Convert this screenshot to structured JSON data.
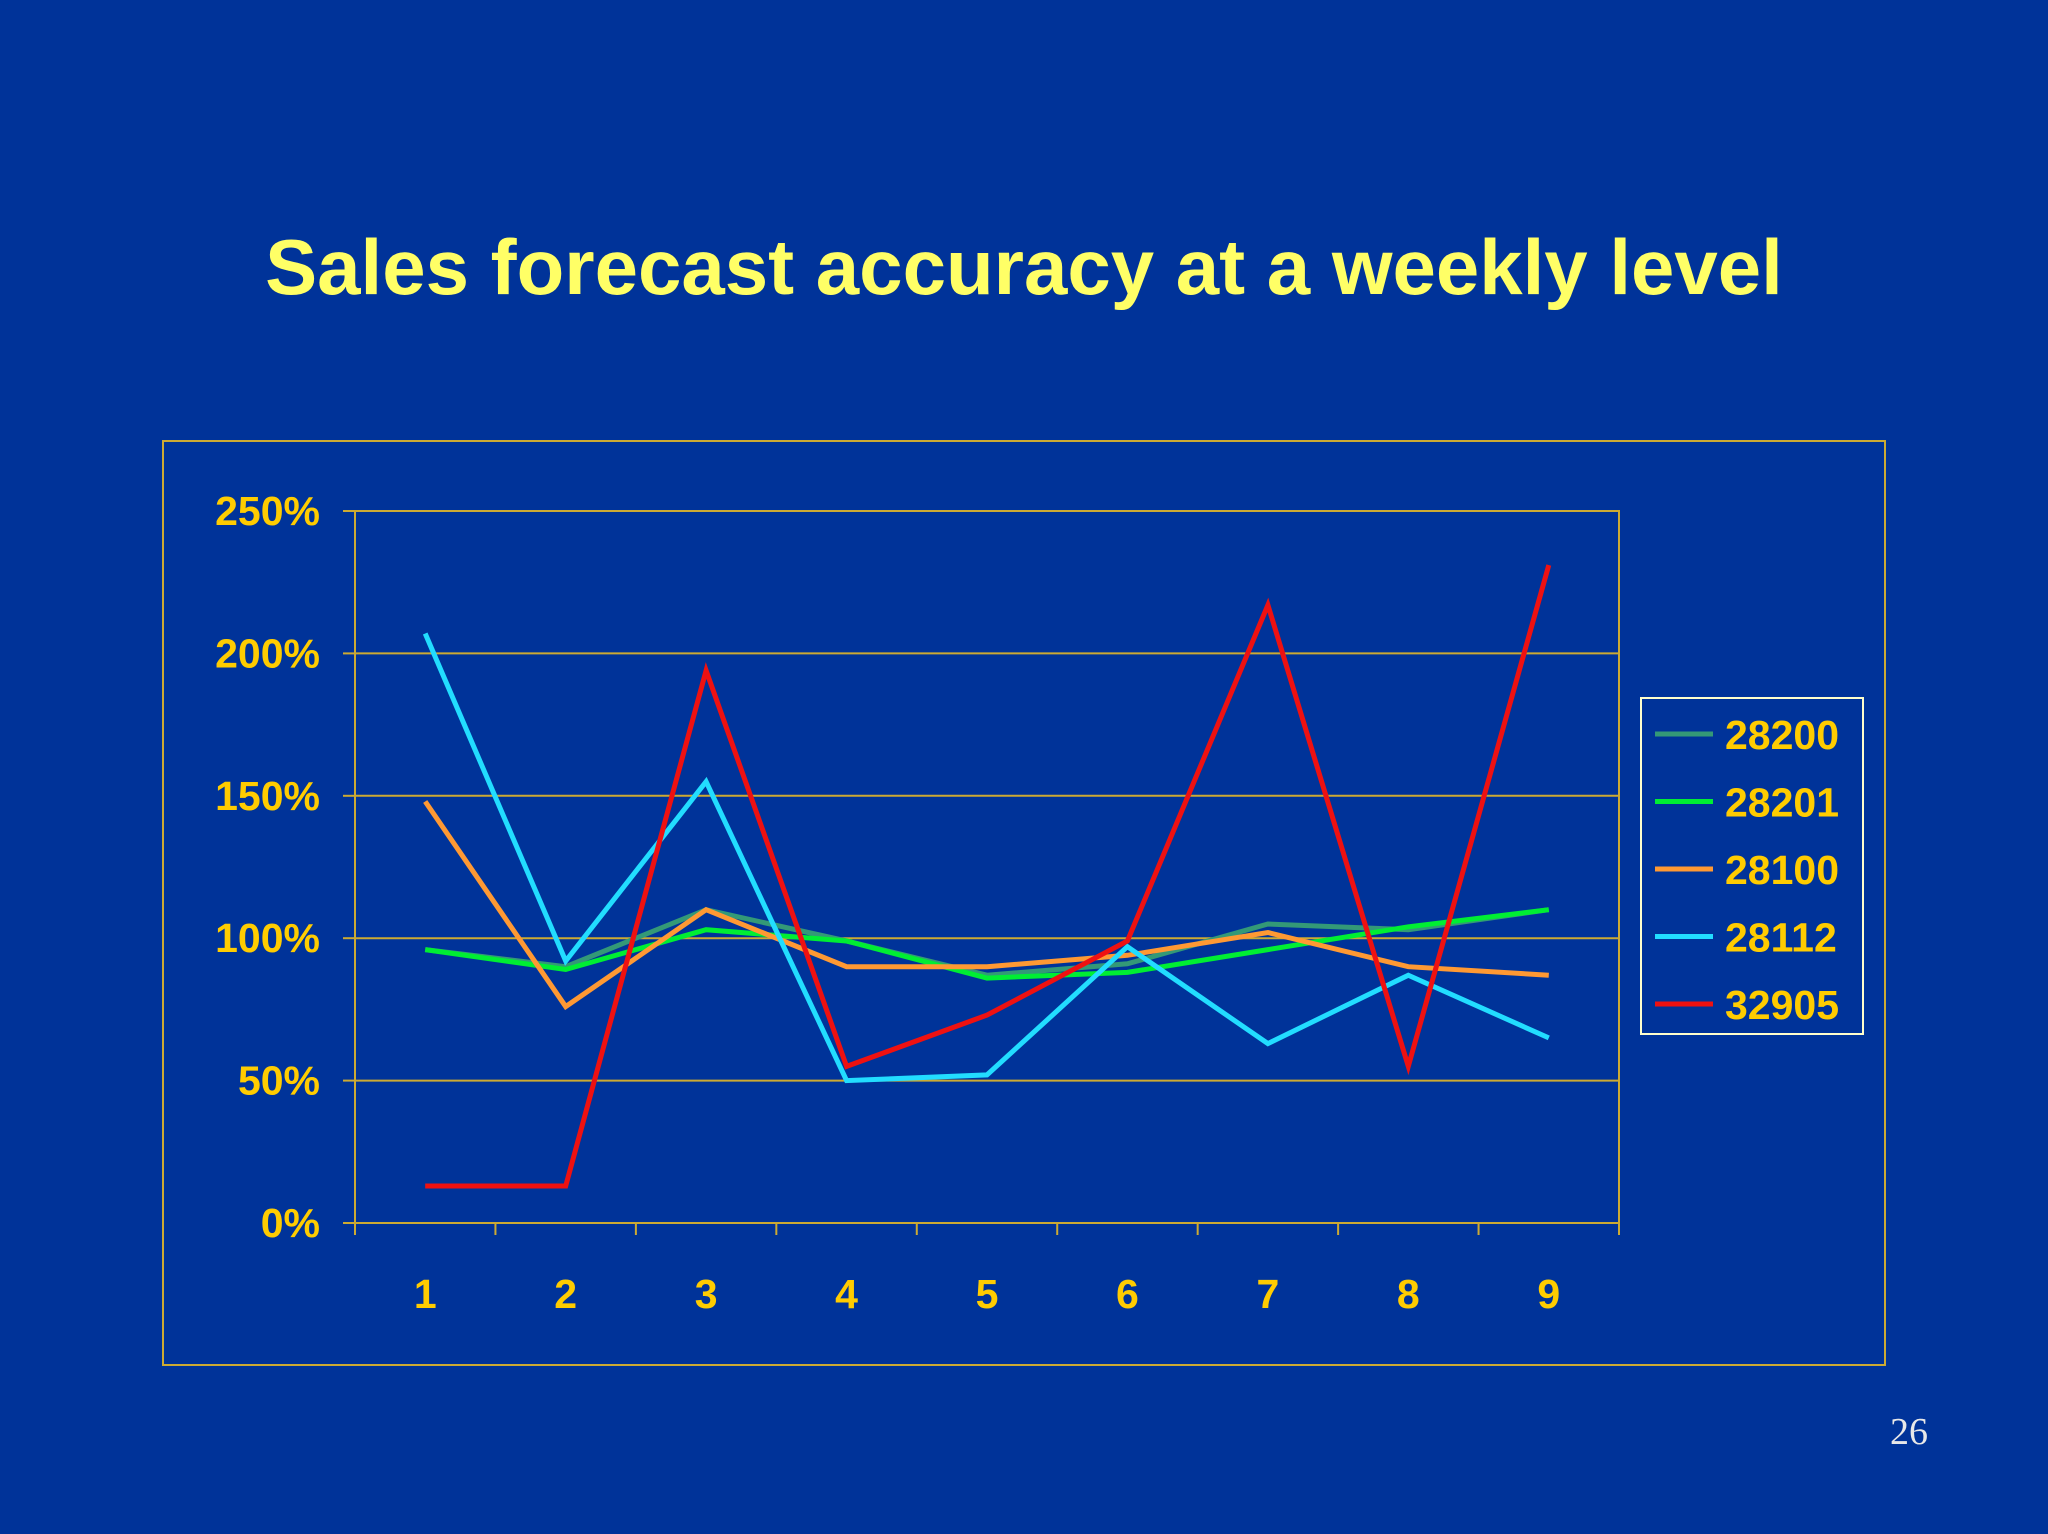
{
  "slide": {
    "title": "Sales forecast accuracy at a weekly level",
    "page_number": "26"
  },
  "colors": {
    "background": "#003399",
    "title": "#ffff66",
    "axis_text": "#ffcc00",
    "frame": "#ccaa33"
  },
  "chart_data": {
    "type": "line",
    "title": "",
    "xlabel": "",
    "ylabel": "",
    "x": [
      1,
      2,
      3,
      4,
      5,
      6,
      7,
      8,
      9
    ],
    "x_tick_labels": [
      "1",
      "2",
      "3",
      "4",
      "5",
      "6",
      "7",
      "8",
      "9"
    ],
    "ylim": [
      0,
      2.5
    ],
    "y_ticks": [
      0,
      0.5,
      1.0,
      1.5,
      2.0,
      2.5
    ],
    "y_tick_labels": [
      "0%",
      "50%",
      "100%",
      "150%",
      "200%",
      "250%"
    ],
    "grid": "horizontal",
    "legend_position": "right",
    "series": [
      {
        "name": "28200",
        "color": "#339977",
        "values": [
          0.96,
          0.9,
          1.1,
          0.99,
          0.87,
          0.91,
          1.05,
          1.03,
          1.1
        ]
      },
      {
        "name": "28201",
        "color": "#00ee33",
        "values": [
          0.96,
          0.89,
          1.03,
          0.99,
          0.86,
          0.88,
          0.96,
          1.04,
          1.1
        ]
      },
      {
        "name": "28100",
        "color": "#ff9933",
        "values": [
          1.48,
          0.76,
          1.1,
          0.9,
          0.9,
          0.94,
          1.02,
          0.9,
          0.87
        ]
      },
      {
        "name": "28112",
        "color": "#22ddff",
        "values": [
          2.07,
          0.92,
          1.55,
          0.5,
          0.52,
          0.97,
          0.63,
          0.87,
          0.65
        ]
      },
      {
        "name": "32905",
        "color": "#ee1111",
        "values": [
          0.13,
          0.13,
          1.94,
          0.55,
          0.73,
          0.99,
          2.17,
          0.55,
          2.31
        ]
      }
    ]
  }
}
